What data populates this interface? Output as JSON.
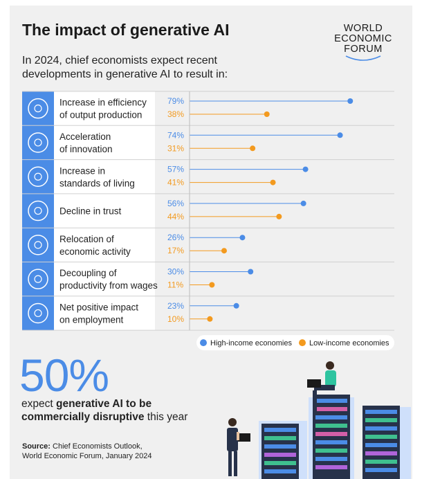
{
  "title": "The impact of generative AI",
  "subtitle": "In 2024, chief economists expect recent developments in generative AI to result in:",
  "logo": {
    "line1": "WORLD",
    "line2": "ECONOMIC",
    "line3": "FORUM"
  },
  "chart_data": {
    "type": "scatter",
    "subtype": "dot-plot",
    "xlim": [
      0,
      100
    ],
    "categories": [
      [
        "Increase in efficiency",
        "of output production"
      ],
      [
        "Acceleration",
        "of innovation"
      ],
      [
        "Increase in",
        "standards of living"
      ],
      [
        "Decline in trust"
      ],
      [
        "Relocation of",
        "economic activity"
      ],
      [
        "Decoupling of",
        "productivity from wages"
      ],
      [
        "Net positive impact",
        "on employment"
      ]
    ],
    "icons": [
      "efficiency-icon",
      "innovation-icon",
      "living-standards-icon",
      "trust-icon",
      "relocation-icon",
      "wages-icon",
      "employment-icon"
    ],
    "series": [
      {
        "name": "High-income economies",
        "color": "#4b8ce6",
        "values": [
          79,
          74,
          57,
          56,
          26,
          30,
          23
        ]
      },
      {
        "name": "Low-income economies",
        "color": "#f39a1f",
        "values": [
          38,
          31,
          41,
          44,
          17,
          11,
          10
        ]
      }
    ],
    "legend": "bottom-right"
  },
  "stat": {
    "value": "50%",
    "pre": "expect ",
    "bold": "generative AI to be commercially disruptive",
    "post": " this year"
  },
  "source": {
    "label": "Source:",
    "line1": "Chief Economists Outlook,",
    "line2": "World Economic Forum, January 2024"
  },
  "colors": {
    "accent": "#4b8ce6",
    "low": "#f39a1f",
    "icon_bg": "#4b8ce6",
    "card": "#f0f0f0"
  }
}
